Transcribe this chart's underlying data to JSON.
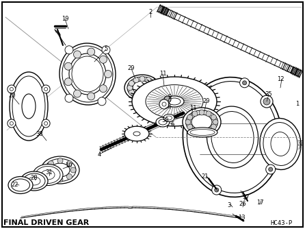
{
  "title": "FINAL DRIVEN GEAR",
  "part_code": "HC43-P",
  "bg_color": "#ffffff",
  "fig_width": 4.46,
  "fig_height": 3.34,
  "dpi": 100
}
